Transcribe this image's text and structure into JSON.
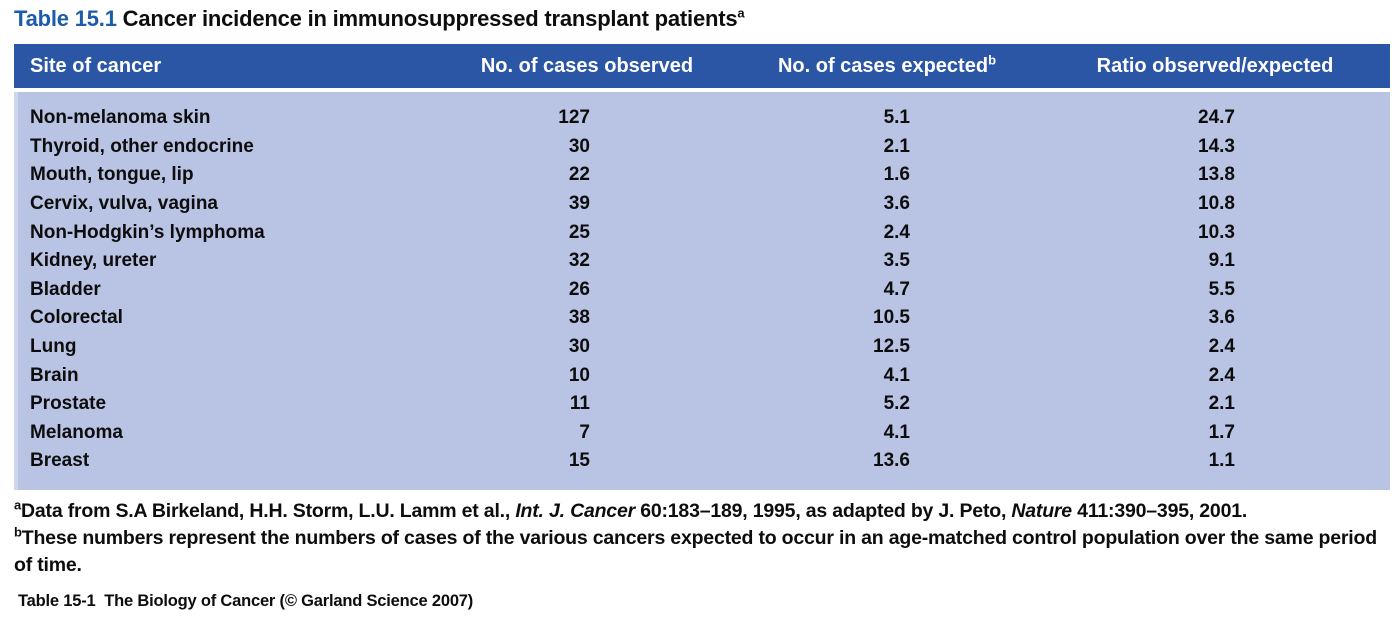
{
  "title": {
    "label": "Table 15.1",
    "text": " Cancer incidence in immunosuppressed transplant patients",
    "sup": "a"
  },
  "table": {
    "headers": [
      {
        "label": "Site of cancer"
      },
      {
        "label": "No. of cases observed"
      },
      {
        "label": "No. of cases expected",
        "sup": "b"
      },
      {
        "label": "Ratio observed/expected"
      }
    ],
    "rows": [
      {
        "site": "Non-melanoma skin",
        "observed": "127",
        "expected": "5.1",
        "ratio": "24.7"
      },
      {
        "site": "Thyroid, other endocrine",
        "observed": "30",
        "expected": "2.1",
        "ratio": "14.3"
      },
      {
        "site": "Mouth, tongue, lip",
        "observed": "22",
        "expected": "1.6",
        "ratio": "13.8"
      },
      {
        "site": "Cervix, vulva, vagina",
        "observed": "39",
        "expected": "3.6",
        "ratio": "10.8"
      },
      {
        "site": "Non-Hodgkin’s lymphoma",
        "observed": "25",
        "expected": "2.4",
        "ratio": "10.3"
      },
      {
        "site": "Kidney, ureter",
        "observed": "32",
        "expected": "3.5",
        "ratio": "9.1"
      },
      {
        "site": "Bladder",
        "observed": "26",
        "expected": "4.7",
        "ratio": "5.5"
      },
      {
        "site": "Colorectal",
        "observed": "38",
        "expected": "10.5",
        "ratio": "3.6"
      },
      {
        "site": "Lung",
        "observed": "30",
        "expected": "12.5",
        "ratio": "2.4"
      },
      {
        "site": "Brain",
        "observed": "10",
        "expected": "4.1",
        "ratio": "2.4"
      },
      {
        "site": "Prostate",
        "observed": "11",
        "expected": "5.2",
        "ratio": "2.1"
      },
      {
        "site": "Melanoma",
        "observed": "7",
        "expected": "4.1",
        "ratio": "1.7"
      },
      {
        "site": "Breast",
        "observed": "15",
        "expected": "13.6",
        "ratio": "1.1"
      }
    ]
  },
  "footnotes": [
    {
      "sup": "a",
      "parts": [
        {
          "text": "Data from S.A Birkeland, H.H. Storm, L.U. Lamm et al., ",
          "italic": false
        },
        {
          "text": "Int. J. Cancer",
          "italic": true
        },
        {
          "text": " 60:183–189, 1995, as adapted by J. Peto, ",
          "italic": false
        },
        {
          "text": "Nature",
          "italic": true
        },
        {
          "text": " 411:390–395, 2001.",
          "italic": false
        }
      ]
    },
    {
      "sup": "b",
      "parts": [
        {
          "text": "These numbers represent the numbers of cases of the various cancers expected to occur in an age-matched control population over the same period of time.",
          "italic": false
        }
      ]
    }
  ],
  "credit": "Table 15-1  The Biology of Cancer (© Garland Science 2007)",
  "colors": {
    "header_bg": "#2b55a5",
    "body_bg": "#b9c3e4",
    "title_blue": "#1c5cab"
  }
}
